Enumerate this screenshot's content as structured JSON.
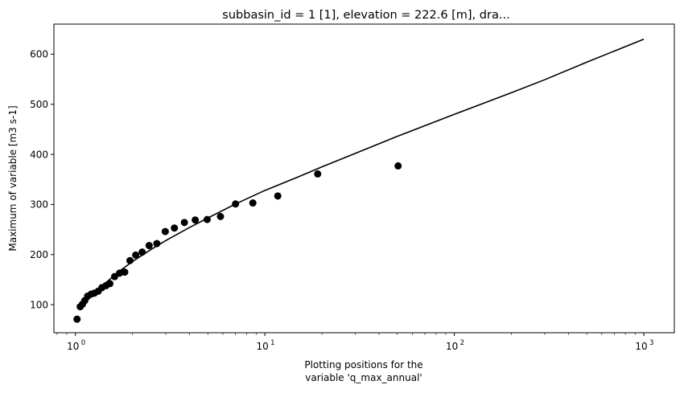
{
  "chart_data": {
    "type": "scatter",
    "title": "subbasin_id = 1 [1], elevation = 222.6 [m], dra...",
    "xlabel_line1": "Plotting positions for the",
    "xlabel_line2": "variable 'q_max_annual'",
    "ylabel": "Maximum of variable [m3 s-1]",
    "xscale": "log",
    "xlim": [
      0.77,
      1450
    ],
    "ylim": [
      44,
      660
    ],
    "grid": false,
    "x_ticks": [
      {
        "value": 1,
        "base": "10",
        "exp": "0"
      },
      {
        "value": 10,
        "base": "10",
        "exp": "1"
      },
      {
        "value": 100,
        "base": "10",
        "exp": "2"
      },
      {
        "value": 1000,
        "base": "10",
        "exp": "3"
      }
    ],
    "y_ticks": [
      100,
      200,
      300,
      400,
      500,
      600
    ],
    "series": [
      {
        "kind": "points",
        "color": "#000000",
        "points": [
          [
            1.02,
            71
          ],
          [
            1.06,
            96
          ],
          [
            1.09,
            101
          ],
          [
            1.12,
            108
          ],
          [
            1.16,
            117
          ],
          [
            1.21,
            121
          ],
          [
            1.26,
            123
          ],
          [
            1.32,
            127
          ],
          [
            1.38,
            134
          ],
          [
            1.45,
            138
          ],
          [
            1.52,
            142
          ],
          [
            1.61,
            156
          ],
          [
            1.71,
            163
          ],
          [
            1.82,
            165
          ],
          [
            1.94,
            188
          ],
          [
            2.08,
            199
          ],
          [
            2.25,
            205
          ],
          [
            2.45,
            218
          ],
          [
            2.69,
            222
          ],
          [
            2.98,
            246
          ],
          [
            3.33,
            253
          ],
          [
            3.76,
            264
          ],
          [
            4.29,
            269
          ],
          [
            4.96,
            270
          ],
          [
            5.83,
            276
          ],
          [
            7.0,
            301
          ],
          [
            8.64,
            303
          ],
          [
            11.7,
            317
          ],
          [
            19.0,
            361
          ],
          [
            50.5,
            377
          ]
        ]
      },
      {
        "kind": "line",
        "color": "#000000",
        "points": [
          [
            1.1,
            99
          ],
          [
            1.2,
            115
          ],
          [
            1.3,
            129
          ],
          [
            1.5,
            149
          ],
          [
            1.75,
            170
          ],
          [
            2,
            186
          ],
          [
            2.5,
            210
          ],
          [
            3,
            228
          ],
          [
            4,
            254
          ],
          [
            5,
            273
          ],
          [
            7,
            301
          ],
          [
            10,
            328
          ],
          [
            15,
            355
          ],
          [
            20,
            375
          ],
          [
            30,
            402
          ],
          [
            50,
            436
          ],
          [
            100,
            480
          ],
          [
            200,
            523
          ],
          [
            300,
            549
          ],
          [
            500,
            584
          ],
          [
            1000,
            630
          ]
        ]
      }
    ]
  }
}
